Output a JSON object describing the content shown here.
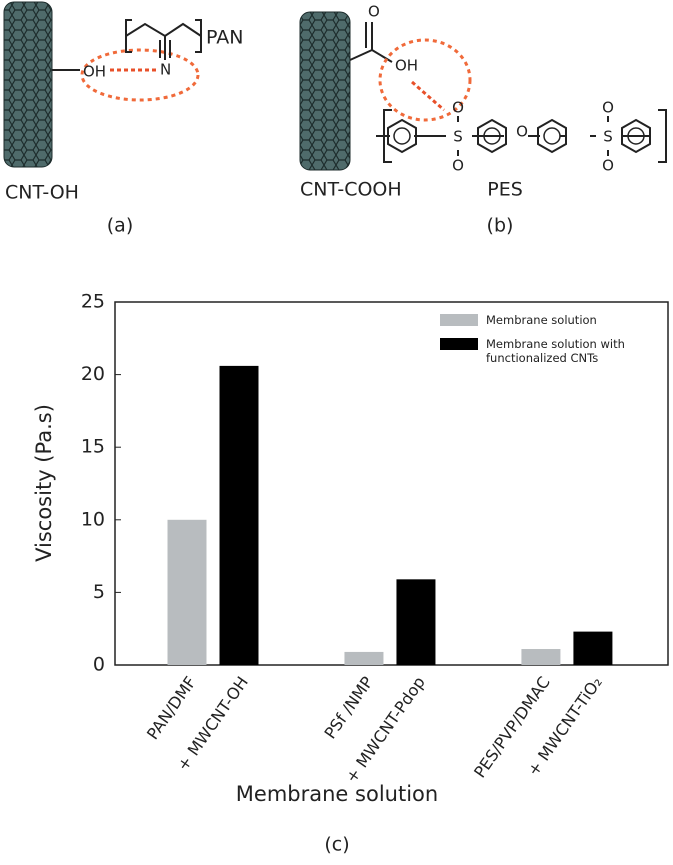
{
  "diagram": {
    "a": {
      "polymer": "PAN",
      "hydroxyl": "OH",
      "nitrogen": "N",
      "tube": "CNT-OH",
      "panel": "(a)"
    },
    "b": {
      "carbonyl": "O",
      "hydroxyl": "OH",
      "tube": "CNT-COOH",
      "polymer": "PES",
      "panel": "(b)",
      "sulfur": "S",
      "oxygen": "O",
      "ether": "O"
    }
  },
  "chart_data": {
    "type": "bar",
    "panel": "(c)",
    "y_label": "Viscosity (Pa.s)",
    "x_label": "Membrane solution",
    "categories": [
      "PAN/DMF",
      "+ MWCNT-OH",
      "PSf /NMP",
      "+ MWCNT-Pdop",
      "PES/PVP/DMAC",
      "+ MWCNT-TiO₂"
    ],
    "series": [
      {
        "name": "Membrane solution",
        "color": "#b8bcbf",
        "values": [
          10,
          null,
          0.9,
          null,
          1.1,
          null
        ]
      },
      {
        "name": "Membrane solution with functionalized CNTs",
        "color": "#000000",
        "values": [
          null,
          20.6,
          null,
          5.9,
          null,
          2.3
        ]
      }
    ],
    "ylim": [
      0,
      25
    ],
    "yticks": [
      0,
      5,
      10,
      15,
      20,
      25
    ],
    "legend": "upper right"
  }
}
